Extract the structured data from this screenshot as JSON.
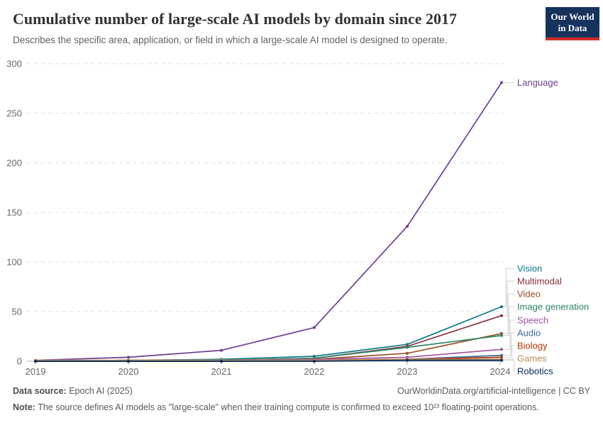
{
  "header": {
    "title": "Cumulative number of large-scale AI models by domain since 2017",
    "subtitle": "Describes the specific area, application, or field in which a large-scale AI model is designed to operate.",
    "logo": {
      "line1": "Our World",
      "line2": "in Data",
      "bg_color": "#16335E",
      "accent_color": "#D32E26"
    }
  },
  "chart_data": {
    "type": "line",
    "title": "Cumulative number of large-scale AI models by domain since 2017",
    "x": [
      2019,
      2020,
      2021,
      2022,
      2023,
      2024
    ],
    "xlabel": "",
    "ylabel": "",
    "ylim": [
      0,
      300
    ],
    "yticks": [
      0,
      50,
      100,
      150,
      200,
      250,
      300
    ],
    "grid": "horizontal-dashed",
    "legend_position": "right-direct-labels",
    "series": [
      {
        "name": "Language",
        "color": "#6D3E91",
        "values": [
          1,
          4,
          11,
          34,
          136,
          281
        ]
      },
      {
        "name": "Vision",
        "color": "#0B7B85",
        "values": [
          0,
          1,
          2,
          5,
          17,
          55
        ]
      },
      {
        "name": "Multimodal",
        "color": "#883039",
        "values": [
          0,
          1,
          1,
          3,
          15,
          46
        ]
      },
      {
        "name": "Video",
        "color": "#9A5129",
        "values": [
          0,
          0,
          1,
          2,
          8,
          28
        ]
      },
      {
        "name": "Image generation",
        "color": "#2C8465",
        "values": [
          0,
          0,
          1,
          3,
          14,
          26
        ]
      },
      {
        "name": "Speech",
        "color": "#A2559C",
        "values": [
          0,
          1,
          1,
          2,
          4,
          12
        ]
      },
      {
        "name": "Audio",
        "color": "#3C6D9E",
        "values": [
          0,
          0,
          0,
          1,
          2,
          6
        ]
      },
      {
        "name": "Biology",
        "color": "#B13507",
        "values": [
          0,
          0,
          1,
          1,
          2,
          4
        ]
      },
      {
        "name": "Games",
        "color": "#BC8E5A",
        "values": [
          1,
          1,
          1,
          1,
          2,
          2
        ]
      },
      {
        "name": "Robotics",
        "color": "#00295B",
        "values": [
          0,
          0,
          0,
          0,
          1,
          1
        ]
      }
    ]
  },
  "footer": {
    "source_label": "Data source:",
    "source_value": " Epoch AI (2025)",
    "citation": "OurWorldinData.org/artificial-intelligence | CC BY",
    "note_label": "Note:",
    "note_text": " The source defines AI models as \"large-scale\" when their training compute is confirmed to exceed 10²³ floating-point operations."
  }
}
